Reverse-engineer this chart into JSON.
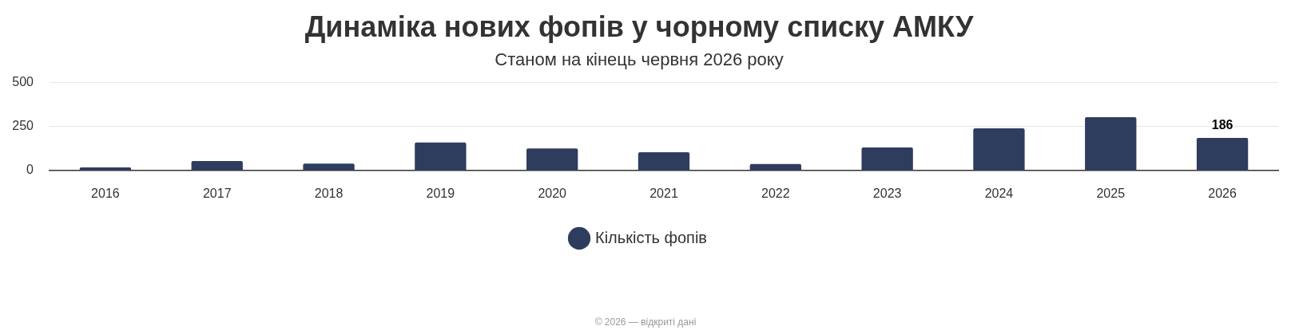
{
  "chart_data": {
    "type": "bar",
    "title": "Динаміка нових фопів у чорному списку АМКУ",
    "subtitle": "Станом на кінець червня 2026 року",
    "categories": [
      "2016",
      "2017",
      "2018",
      "2019",
      "2020",
      "2021",
      "2022",
      "2023",
      "2024",
      "2025",
      "2026"
    ],
    "series": [
      {
        "name": "Кількість фопів",
        "color": "#2e3d5e",
        "values": [
          18,
          54,
          40,
          160,
          126,
          104,
          37,
          131,
          240,
          303,
          186
        ],
        "value_labels": [
          null,
          null,
          null,
          null,
          null,
          null,
          null,
          null,
          null,
          null,
          "186"
        ]
      }
    ],
    "ylim": [
      0,
      500
    ],
    "yticks": [
      0,
      250,
      500
    ],
    "grid": "y",
    "legend": "bottom",
    "annotations": [
      "© 2026 — відкриті дані"
    ]
  }
}
